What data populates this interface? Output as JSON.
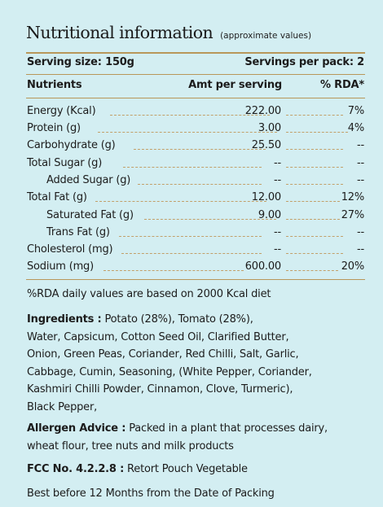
{
  "header": {
    "title": "Nutritional information",
    "subtitle": "(approximate values)"
  },
  "serving": {
    "size": "Serving size: 150g",
    "per_pack": "Servings per pack: 2"
  },
  "table": {
    "columns": [
      "Nutrients",
      "Amt per serving",
      "% RDA*"
    ],
    "rows": [
      {
        "name": "Energy (Kcal)",
        "amount": "222.00",
        "rda": "7%"
      },
      {
        "name": "Protein (g)",
        "amount": "3.00",
        "rda": "4%"
      },
      {
        "name": "Carbohydrate (g)",
        "amount": "25.50",
        "rda": "--"
      },
      {
        "name": "Total Sugar (g)",
        "amount": "--",
        "rda": "--"
      },
      {
        "name": "Added Sugar (g)",
        "amount": "--",
        "rda": "--"
      },
      {
        "name": "Total Fat (g)",
        "amount": "12.00",
        "rda": "12%"
      },
      {
        "name": "Saturated Fat (g)",
        "amount": "9.00",
        "rda": "27%"
      },
      {
        "name": "Trans Fat (g)",
        "amount": "--",
        "rda": "--"
      },
      {
        "name": "Cholesterol (mg)",
        "amount": "--",
        "rda": "--"
      },
      {
        "name": "Sodium (mg)",
        "amount": "600.00",
        "rda": "20%"
      }
    ]
  },
  "rda_note": "%RDA daily values are based on 2000 Kcal diet",
  "ingredients": {
    "label": "Ingredients :",
    "lines": [
      "Potato (28%), Tomato (28%),",
      "Water, Capsicum, Cotton Seed Oil, Clarified Butter,",
      "Onion, Green Peas, Coriander, Red Chilli, Salt, Garlic,",
      "Cabbage, Cumin, Seasoning, (White Pepper, Coriander,",
      "Kashmiri Chilli Powder, Cinnamon, Clove, Turmeric),",
      "Black Pepper,"
    ]
  },
  "allergen": {
    "label": "Allergen Advice :",
    "lines": [
      "Packed in a plant that processes dairy,",
      "wheat flour, tree nuts and milk products"
    ]
  },
  "fcc": {
    "label": "FCC No. 4.2.2.8 :",
    "text": "Retort Pouch Vegetable"
  },
  "best_before": "Best before 12 Months from the Date of Packing"
}
